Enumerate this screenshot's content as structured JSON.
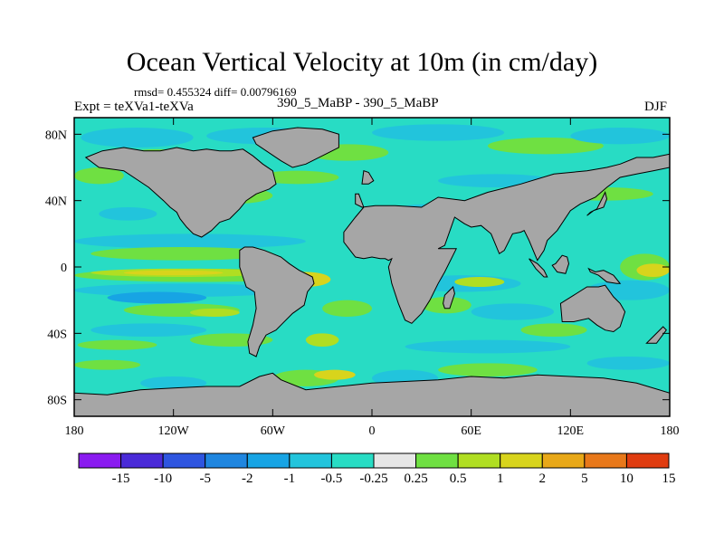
{
  "title": "Ocean Vertical Velocity at 10m (in cm/day)",
  "stats": "rmsd= 0.455324 diff= 0.00796169",
  "expt": "Expt = teXVa1-teXVa",
  "case_label": "390_5_MaBP - 390_5_MaBP",
  "season": "DJF",
  "chart_data": {
    "type": "heatmap",
    "title": "Ocean Vertical Velocity at 10m (in cm/day)",
    "xlabel": "",
    "ylabel": "",
    "xlim": [
      -180,
      180
    ],
    "ylim": [
      -90,
      90
    ],
    "x_ticks": [
      {
        "value": -180,
        "label": "180"
      },
      {
        "value": -120,
        "label": "120W"
      },
      {
        "value": -60,
        "label": "60W"
      },
      {
        "value": 0,
        "label": "0"
      },
      {
        "value": 60,
        "label": "60E"
      },
      {
        "value": 120,
        "label": "120E"
      },
      {
        "value": 180,
        "label": "180"
      }
    ],
    "y_ticks": [
      {
        "value": 80,
        "label": "80N"
      },
      {
        "value": 40,
        "label": "40N"
      },
      {
        "value": 0,
        "label": "0"
      },
      {
        "value": -40,
        "label": "40S"
      },
      {
        "value": -80,
        "label": "80S"
      }
    ],
    "colorbar": {
      "levels": [
        "-15",
        "-10",
        "-5",
        "-2",
        "-1",
        "-0.5",
        "-0.25",
        "0.25",
        "0.5",
        "1",
        "2",
        "5",
        "10",
        "15"
      ],
      "colors": [
        "#8a1bf0",
        "#4a2ad8",
        "#2e55e0",
        "#1f86e0",
        "#17a4e4",
        "#22c4dc",
        "#28dcc4",
        "#e6e6e6",
        "#6fe042",
        "#b0de22",
        "#d8d41c",
        "#e8a818",
        "#e8781a",
        "#e03c10"
      ]
    },
    "land_color": "#a6a6a6",
    "features": [
      {
        "type": "band",
        "lon": [
          -180,
          180
        ],
        "lat": [
          86,
          90
        ],
        "level": "-0.25"
      },
      {
        "type": "blob",
        "lon": [
          -176,
          -108
        ],
        "lat": [
          72,
          84
        ],
        "level": "-0.5"
      },
      {
        "type": "blob",
        "lon": [
          -150,
          -110
        ],
        "lat": [
          63,
          71
        ],
        "level": "0.5"
      },
      {
        "type": "blob",
        "lon": [
          -100,
          -30
        ],
        "lat": [
          74,
          84
        ],
        "level": "-0.5"
      },
      {
        "type": "blob",
        "lon": [
          -40,
          10
        ],
        "lat": [
          64,
          74
        ],
        "level": "0.5"
      },
      {
        "type": "blob",
        "lon": [
          0,
          80
        ],
        "lat": [
          76,
          86
        ],
        "level": "-0.5"
      },
      {
        "type": "blob",
        "lon": [
          70,
          140
        ],
        "lat": [
          68,
          78
        ],
        "level": "0.5"
      },
      {
        "type": "blob",
        "lon": [
          120,
          180
        ],
        "lat": [
          74,
          84
        ],
        "level": "-0.5"
      },
      {
        "type": "blob",
        "lon": [
          -180,
          -150
        ],
        "lat": [
          50,
          60
        ],
        "level": "0.5"
      },
      {
        "type": "blob",
        "lon": [
          -130,
          -90
        ],
        "lat": [
          52,
          60
        ],
        "level": "-0.5"
      },
      {
        "type": "blob",
        "lon": [
          -70,
          -20
        ],
        "lat": [
          50,
          58
        ],
        "level": "0.5"
      },
      {
        "type": "blob",
        "lon": [
          -110,
          -60
        ],
        "lat": [
          38,
          48
        ],
        "level": "0.5"
      },
      {
        "type": "blob",
        "lon": [
          40,
          110
        ],
        "lat": [
          48,
          56
        ],
        "level": "-0.5"
      },
      {
        "type": "blob",
        "lon": [
          110,
          170
        ],
        "lat": [
          40,
          48
        ],
        "level": "0.5"
      },
      {
        "type": "blob",
        "lon": [
          -165,
          -130
        ],
        "lat": [
          28,
          36
        ],
        "level": "-0.5"
      },
      {
        "type": "blob",
        "lon": [
          10,
          70
        ],
        "lat": [
          30,
          38
        ],
        "level": "-0.5"
      },
      {
        "type": "blob",
        "lon": [
          -180,
          -40
        ],
        "lat": [
          11,
          20
        ],
        "level": "-0.5"
      },
      {
        "type": "blob",
        "lon": [
          -170,
          -60
        ],
        "lat": [
          4,
          12
        ],
        "level": "0.5"
      },
      {
        "type": "blob",
        "lon": [
          -180,
          -30
        ],
        "lat": [
          -9,
          -1
        ],
        "level": "0.5"
      },
      {
        "type": "blob",
        "lon": [
          -170,
          -60
        ],
        "lat": [
          -6,
          -1
        ],
        "level": "1"
      },
      {
        "type": "blob",
        "lon": [
          -150,
          -90
        ],
        "lat": [
          -5,
          -2
        ],
        "level": "2"
      },
      {
        "type": "blob",
        "lon": [
          -55,
          -25
        ],
        "lat": [
          -12,
          -3
        ],
        "level": "2"
      },
      {
        "type": "blob",
        "lon": [
          -180,
          -50
        ],
        "lat": [
          -18,
          -10
        ],
        "level": "-0.5"
      },
      {
        "type": "blob",
        "lon": [
          -160,
          -100
        ],
        "lat": [
          -22,
          -15
        ],
        "level": "-1"
      },
      {
        "type": "blob",
        "lon": [
          -150,
          -80
        ],
        "lat": [
          -30,
          -22
        ],
        "level": "0.5"
      },
      {
        "type": "blob",
        "lon": [
          -110,
          -80
        ],
        "lat": [
          -30,
          -25
        ],
        "level": "1"
      },
      {
        "type": "blob",
        "lon": [
          -170,
          -100
        ],
        "lat": [
          -42,
          -34
        ],
        "level": "-0.5"
      },
      {
        "type": "blob",
        "lon": [
          -178,
          -130
        ],
        "lat": [
          -50,
          -44
        ],
        "level": "0.5"
      },
      {
        "type": "blob",
        "lon": [
          -110,
          -60
        ],
        "lat": [
          -48,
          -40
        ],
        "level": "0.5"
      },
      {
        "type": "blob",
        "lon": [
          -30,
          0
        ],
        "lat": [
          -30,
          -20
        ],
        "level": "0.5"
      },
      {
        "type": "blob",
        "lon": [
          -40,
          -20
        ],
        "lat": [
          -48,
          -40
        ],
        "level": "1"
      },
      {
        "type": "blob",
        "lon": [
          20,
          90
        ],
        "lat": [
          -15,
          -5
        ],
        "level": "-0.5"
      },
      {
        "type": "blob",
        "lon": [
          50,
          80
        ],
        "lat": [
          -12,
          -6
        ],
        "level": "1"
      },
      {
        "type": "blob",
        "lon": [
          30,
          60
        ],
        "lat": [
          -28,
          -18
        ],
        "level": "0.5"
      },
      {
        "type": "blob",
        "lon": [
          60,
          110
        ],
        "lat": [
          -32,
          -22
        ],
        "level": "-0.5"
      },
      {
        "type": "blob",
        "lon": [
          90,
          130
        ],
        "lat": [
          -42,
          -34
        ],
        "level": "0.5"
      },
      {
        "type": "blob",
        "lon": [
          20,
          120
        ],
        "lat": [
          -52,
          -44
        ],
        "level": "-0.5"
      },
      {
        "type": "blob",
        "lon": [
          130,
          180
        ],
        "lat": [
          -20,
          -8
        ],
        "level": "-0.5"
      },
      {
        "type": "blob",
        "lon": [
          150,
          180
        ],
        "lat": [
          -8,
          8
        ],
        "level": "0.5"
      },
      {
        "type": "blob",
        "lon": [
          160,
          180
        ],
        "lat": [
          -6,
          2
        ],
        "level": "2"
      },
      {
        "type": "blob",
        "lon": [
          -180,
          -140
        ],
        "lat": [
          -62,
          -56
        ],
        "level": "0.5"
      },
      {
        "type": "blob",
        "lon": [
          -140,
          -100
        ],
        "lat": [
          -74,
          -66
        ],
        "level": "-0.5"
      },
      {
        "type": "blob",
        "lon": [
          -60,
          -20
        ],
        "lat": [
          -72,
          -62
        ],
        "level": "0.5"
      },
      {
        "type": "blob",
        "lon": [
          -35,
          -10
        ],
        "lat": [
          -68,
          -62
        ],
        "level": "2"
      },
      {
        "type": "blob",
        "lon": [
          0,
          40
        ],
        "lat": [
          -72,
          -62
        ],
        "level": "-0.5"
      },
      {
        "type": "blob",
        "lon": [
          40,
          100
        ],
        "lat": [
          -66,
          -58
        ],
        "level": "0.5"
      },
      {
        "type": "blob",
        "lon": [
          130,
          180
        ],
        "lat": [
          -62,
          -54
        ],
        "level": "-0.5"
      }
    ],
    "land": [
      {
        "name": "north-america",
        "lon": [
          -173,
          -163,
          -150,
          -138,
          -128,
          -118,
          -108,
          -100,
          -92,
          -85,
          -78,
          -72,
          -66,
          -60,
          -58,
          -62,
          -70,
          -76,
          -80,
          -86,
          -92,
          -97,
          -103,
          -108,
          -112,
          -116,
          -118,
          -122,
          -126,
          -135,
          -150,
          -165,
          -173
        ],
        "lat": [
          66,
          70,
          72,
          70,
          70,
          72,
          70,
          71,
          70,
          70,
          71,
          67,
          62,
          58,
          50,
          47,
          44,
          40,
          35,
          29,
          27,
          22,
          18,
          20,
          24,
          29,
          33,
          36,
          40,
          48,
          58,
          60,
          66
        ]
      },
      {
        "name": "south-america",
        "lon": [
          -80,
          -77,
          -72,
          -65,
          -55,
          -50,
          -44,
          -36,
          -35,
          -39,
          -41,
          -48,
          -54,
          -58,
          -64,
          -68,
          -70,
          -74,
          -75,
          -72,
          -70,
          -71,
          -76,
          -80
        ],
        "lat": [
          10,
          12,
          12,
          10,
          6,
          2,
          -2,
          -6,
          -10,
          -15,
          -23,
          -28,
          -34,
          -38,
          -41,
          -48,
          -54,
          -52,
          -45,
          -35,
          -25,
          -15,
          -12,
          0
        ]
      },
      {
        "name": "africa-eurasia",
        "lon": [
          -10,
          -6,
          2,
          14,
          30,
          40,
          56,
          70,
          90,
          110,
          130,
          142,
          150,
          160,
          170,
          180,
          180,
          170,
          160,
          150,
          142,
          135,
          126,
          120,
          112,
          106,
          104,
          100,
          95,
          92,
          90,
          85,
          80,
          77,
          72,
          66,
          60,
          56,
          50,
          44,
          40,
          51,
          44,
          40,
          35,
          30,
          24,
          20,
          16,
          12,
          10,
          12,
          10,
          8,
          5,
          0,
          -5,
          -10,
          -17,
          -17,
          -10,
          -5,
          -8,
          -10
        ],
        "lat": [
          38,
          36,
          37,
          37,
          36,
          42,
          40,
          45,
          50,
          56,
          58,
          60,
          62,
          66,
          66,
          68,
          60,
          58,
          56,
          54,
          48,
          42,
          38,
          34,
          22,
          16,
          10,
          4,
          16,
          22,
          21,
          20,
          10,
          8,
          20,
          25,
          24,
          26,
          30,
          13,
          11,
          11,
          -3,
          -10,
          -20,
          -28,
          -34,
          -32,
          -22,
          -10,
          0,
          5,
          4,
          5,
          5,
          6,
          5,
          6,
          15,
          21,
          30,
          36,
          44,
          44
        ]
      },
      {
        "name": "greenland",
        "lon": [
          -72,
          -60,
          -45,
          -30,
          -20,
          -20,
          -28,
          -40,
          -48,
          -55,
          -70,
          -72
        ],
        "lat": [
          78,
          82,
          84,
          83,
          80,
          72,
          68,
          62,
          60,
          64,
          74,
          78
        ]
      },
      {
        "name": "australia",
        "lon": [
          114,
          122,
          130,
          137,
          141,
          146,
          150,
          153,
          150,
          146,
          141,
          136,
          131,
          122,
          115,
          114
        ],
        "lat": [
          -22,
          -17,
          -12,
          -12,
          -11,
          -18,
          -22,
          -27,
          -36,
          -39,
          -38,
          -35,
          -31,
          -33,
          -33,
          -22
        ]
      },
      {
        "name": "antarctica",
        "lon": [
          -180,
          -160,
          -140,
          -120,
          -100,
          -80,
          -68,
          -60,
          -55,
          -40,
          -20,
          0,
          20,
          40,
          60,
          80,
          100,
          120,
          140,
          160,
          180,
          180,
          -180
        ],
        "lat": [
          -76,
          -77,
          -74,
          -73,
          -72,
          -72,
          -66,
          -64,
          -68,
          -74,
          -72,
          -70,
          -69,
          -68,
          -66,
          -67,
          -65,
          -66,
          -67,
          -70,
          -76,
          -90,
          -90
        ]
      },
      {
        "name": "new-guinea",
        "lon": [
          131,
          135,
          140,
          146,
          150,
          148,
          142,
          137,
          132,
          131
        ],
        "lat": [
          -1,
          -3,
          -2,
          -5,
          -10,
          -10,
          -9,
          -5,
          -3,
          -1
        ]
      },
      {
        "name": "borneo",
        "lon": [
          109,
          112,
          117,
          119,
          118,
          115,
          111,
          109
        ],
        "lat": [
          1,
          -3,
          -4,
          2,
          6,
          7,
          2,
          1
        ]
      },
      {
        "name": "sumatra",
        "lon": [
          95,
          100,
          104,
          106,
          104,
          99,
          95
        ],
        "lat": [
          5,
          2,
          -2,
          -6,
          -6,
          -1,
          5
        ]
      },
      {
        "name": "japan",
        "lon": [
          130,
          134,
          140,
          142,
          141,
          136,
          132,
          130
        ],
        "lat": [
          31,
          34,
          36,
          41,
          45,
          35,
          33,
          31
        ]
      },
      {
        "name": "madagascar",
        "lon": [
          44,
          47,
          50,
          49,
          46,
          44,
          43,
          44
        ],
        "lat": [
          -25,
          -25,
          -16,
          -12,
          -15,
          -17,
          -22,
          -25
        ]
      },
      {
        "name": "uk",
        "lon": [
          -6,
          -2,
          1,
          -2,
          -5,
          -6
        ],
        "lat": [
          50,
          50,
          52,
          57,
          58,
          50
        ]
      },
      {
        "name": "new-zealand",
        "lon": [
          166,
          172,
          178,
          176,
          170,
          166
        ],
        "lat": [
          -46,
          -46,
          -38,
          -36,
          -42,
          -46
        ]
      }
    ]
  }
}
